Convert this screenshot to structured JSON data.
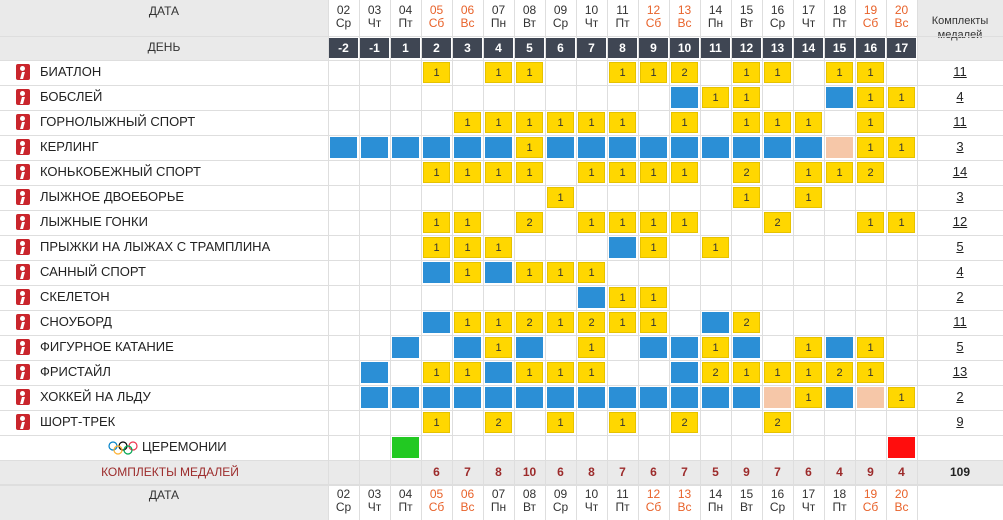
{
  "header": {
    "date_label": "ДАТА",
    "day_label": "ДЕНЬ",
    "totals_label": "Комплекты медалей"
  },
  "dates": [
    {
      "d": "02",
      "w": "Ср",
      "we": false
    },
    {
      "d": "03",
      "w": "Чт",
      "we": false
    },
    {
      "d": "04",
      "w": "Пт",
      "we": false
    },
    {
      "d": "05",
      "w": "Сб",
      "we": true
    },
    {
      "d": "06",
      "w": "Вс",
      "we": true
    },
    {
      "d": "07",
      "w": "Пн",
      "we": false
    },
    {
      "d": "08",
      "w": "Вт",
      "we": false
    },
    {
      "d": "09",
      "w": "Ср",
      "we": false
    },
    {
      "d": "10",
      "w": "Чт",
      "we": false
    },
    {
      "d": "11",
      "w": "Пт",
      "we": false
    },
    {
      "d": "12",
      "w": "Сб",
      "we": true
    },
    {
      "d": "13",
      "w": "Вс",
      "we": true
    },
    {
      "d": "14",
      "w": "Пн",
      "we": false
    },
    {
      "d": "15",
      "w": "Вт",
      "we": false
    },
    {
      "d": "16",
      "w": "Ср",
      "we": false
    },
    {
      "d": "17",
      "w": "Чт",
      "we": false
    },
    {
      "d": "18",
      "w": "Пт",
      "we": false
    },
    {
      "d": "19",
      "w": "Сб",
      "we": true
    },
    {
      "d": "20",
      "w": "Вс",
      "we": true
    }
  ],
  "day_numbers": [
    "-2",
    "-1",
    "1",
    "2",
    "3",
    "4",
    "5",
    "6",
    "7",
    "8",
    "9",
    "10",
    "11",
    "12",
    "13",
    "14",
    "15",
    "16",
    "17"
  ],
  "sports": [
    {
      "name": "БИАТЛОН",
      "total": "11",
      "icon": "biathlon-icon",
      "cells": [
        "",
        "",
        "",
        "1",
        "",
        "1",
        "1",
        "",
        "",
        "1",
        "1",
        "2",
        "",
        "1",
        "1",
        "",
        "1",
        "1",
        ""
      ]
    },
    {
      "name": "БОБСЛЕЙ",
      "total": "4",
      "icon": "bobsleigh-icon",
      "cells": [
        "",
        "",
        "",
        "",
        "",
        "",
        "",
        "",
        "",
        "",
        "",
        "B",
        "1",
        "1",
        "",
        "",
        "B",
        "1",
        "1"
      ]
    },
    {
      "name": "ГОРНОЛЫЖНЫЙ СПОРТ",
      "total": "11",
      "icon": "alpine-skiing-icon",
      "cells": [
        "",
        "",
        "",
        "",
        "1",
        "1",
        "1",
        "1",
        "1",
        "1",
        "",
        "1",
        "",
        "1",
        "1",
        "1",
        "",
        "1",
        ""
      ]
    },
    {
      "name": "КЕРЛИНГ",
      "total": "3",
      "icon": "curling-icon",
      "cells": [
        "B",
        "B",
        "B",
        "B",
        "B",
        "B",
        "1",
        "B",
        "B",
        "B",
        "B",
        "B",
        "B",
        "B",
        "B",
        "B",
        "P",
        "1",
        "1"
      ]
    },
    {
      "name": "КОНЬКОБЕЖНЫЙ СПОРТ",
      "total": "14",
      "icon": "speed-skating-icon",
      "cells": [
        "",
        "",
        "",
        "1",
        "1",
        "1",
        "1",
        "",
        "1",
        "1",
        "1",
        "1",
        "",
        "2",
        "",
        "1",
        "1",
        "2",
        ""
      ]
    },
    {
      "name": "ЛЫЖНОЕ ДВОЕБОРЬЕ",
      "total": "3",
      "icon": "nordic-combined-icon",
      "cells": [
        "",
        "",
        "",
        "",
        "",
        "",
        "",
        "1",
        "",
        "",
        "",
        "",
        "",
        "1",
        "",
        "1",
        "",
        "",
        ""
      ]
    },
    {
      "name": "ЛЫЖНЫЕ ГОНКИ",
      "total": "12",
      "icon": "cross-country-icon",
      "cells": [
        "",
        "",
        "",
        "1",
        "1",
        "",
        "2",
        "",
        "1",
        "1",
        "1",
        "1",
        "",
        "",
        "2",
        "",
        "",
        "1",
        "1"
      ]
    },
    {
      "name": "ПРЫЖКИ НА ЛЫЖАХ С ТРАМПЛИНА",
      "total": "5",
      "icon": "ski-jumping-icon",
      "cells": [
        "",
        "",
        "",
        "1",
        "1",
        "1",
        "",
        "",
        "",
        "B",
        "1",
        "",
        "1",
        "",
        "",
        "",
        "",
        "",
        ""
      ]
    },
    {
      "name": "САННЫЙ СПОРТ",
      "total": "4",
      "icon": "luge-icon",
      "cells": [
        "",
        "",
        "",
        "B",
        "1",
        "B",
        "1",
        "1",
        "1",
        "",
        "",
        "",
        "",
        "",
        "",
        "",
        "",
        "",
        ""
      ]
    },
    {
      "name": "СКЕЛЕТОН",
      "total": "2",
      "icon": "skeleton-icon",
      "cells": [
        "",
        "",
        "",
        "",
        "",
        "",
        "",
        "",
        "B",
        "1",
        "1",
        "",
        "",
        "",
        "",
        "",
        "",
        "",
        ""
      ]
    },
    {
      "name": "СНОУБОРД",
      "total": "11",
      "icon": "snowboard-icon",
      "cells": [
        "",
        "",
        "",
        "B",
        "1",
        "1",
        "2",
        "1",
        "2",
        "1",
        "1",
        "",
        "B",
        "2",
        "",
        "",
        "",
        "",
        ""
      ]
    },
    {
      "name": "ФИГУРНОЕ КАТАНИЕ",
      "total": "5",
      "icon": "figure-skating-icon",
      "cells": [
        "",
        "",
        "B",
        "",
        "B",
        "1",
        "B",
        "",
        "1",
        "",
        "B",
        "B",
        "1",
        "B",
        "",
        "1",
        "B",
        "1",
        ""
      ]
    },
    {
      "name": "ФРИСТАЙЛ",
      "total": "13",
      "icon": "freestyle-icon",
      "cells": [
        "",
        "B",
        "",
        "1",
        "1",
        "B",
        "1",
        "1",
        "1",
        "",
        "",
        "B",
        "2",
        "1",
        "1",
        "1",
        "2",
        "1",
        ""
      ]
    },
    {
      "name": "ХОККЕЙ НА ЛЬДУ",
      "total": "2",
      "icon": "ice-hockey-icon",
      "cells": [
        "",
        "B",
        "B",
        "B",
        "B",
        "B",
        "B",
        "B",
        "B",
        "B",
        "B",
        "B",
        "B",
        "B",
        "P",
        "1",
        "B",
        "P",
        "1"
      ]
    },
    {
      "name": "ШОРТ-ТРЕК",
      "total": "9",
      "icon": "short-track-icon",
      "cells": [
        "",
        "",
        "",
        "1",
        "",
        "2",
        "",
        "1",
        "",
        "1",
        "",
        "2",
        "",
        "",
        "2",
        "",
        "",
        "",
        ""
      ]
    }
  ],
  "ceremonies": {
    "label": "ЦЕРЕМОНИИ",
    "opening_col": 2,
    "closing_col": 18,
    "opening_color": "#22c922",
    "closing_color": "#ff0d0d",
    "icon": "olympic-rings-icon"
  },
  "daily_totals": {
    "label": "КОМПЛЕКТЫ МЕДАЛЕЙ",
    "values": [
      "",
      "",
      "",
      "6",
      "7",
      "8",
      "10",
      "6",
      "8",
      "7",
      "6",
      "7",
      "5",
      "9",
      "7",
      "6",
      "4",
      "9",
      "4"
    ],
    "grand_total": "109"
  },
  "colors": {
    "medal": "#ffd700",
    "competition": "#2b8fd6",
    "possible": "#f6c7a8",
    "header_bg": "#eaeaea",
    "day_bg": "#3f4653",
    "weekend": "#e8622a"
  }
}
